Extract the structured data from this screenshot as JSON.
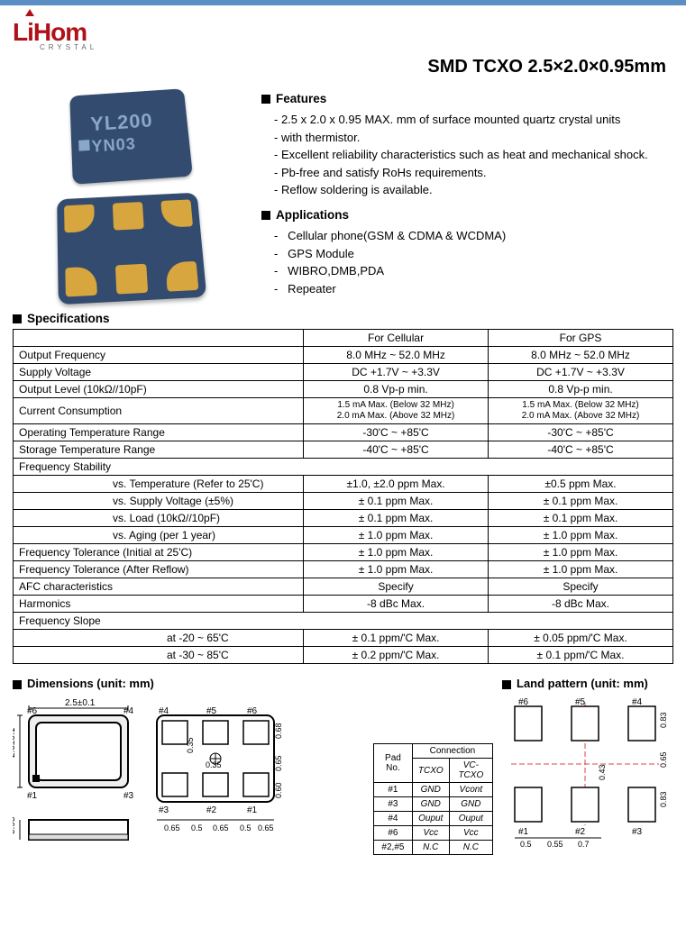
{
  "logo": {
    "text": "LiHom",
    "sub": "CRYSTAL"
  },
  "title": "SMD TCXO 2.5×2.0×0.95mm",
  "chip": {
    "line1": "YL200",
    "line2": "YN03"
  },
  "features": {
    "heading": "Features",
    "items": [
      "2.5 x 2.0 x 0.95 MAX. mm of surface mounted quartz crystal units",
      " with thermistor.",
      "Excellent reliability characteristics such as heat and mechanical shock.",
      "Pb-free and satisfy RoHs requirements.",
      "Reflow soldering is available."
    ]
  },
  "applications": {
    "heading": "Applications",
    "items": [
      " Cellular phone(GSM & CDMA & WCDMA)",
      " GPS Module",
      " WIBRO,DMB,PDA",
      " Repeater"
    ]
  },
  "specHeading": "Specifications",
  "specCols": {
    "c1": "For Cellular",
    "c2": "For GPS"
  },
  "rows": [
    {
      "l": "Output Frequency",
      "a": "8.0 MHz ~ 52.0 MHz",
      "b": "8.0 MHz ~ 52.0 MHz"
    },
    {
      "l": "Supply Voltage",
      "a": "DC +1.7V ~ +3.3V",
      "b": "DC +1.7V ~ +3.3V"
    },
    {
      "l": "Output Level (10kΩ//10pF)",
      "a": "0.8 Vp-p min.",
      "b": "0.8 Vp-p min."
    },
    {
      "l": "Current Consumption",
      "a": "1.5 mA  Max. (Below 32 MHz)\n2.0 mA  Max. (Above 32 MHz)",
      "b": "1.5 mA  Max. (Below 32 MHz)\n2.0 mA  Max. (Above 32 MHz)",
      "small": true
    },
    {
      "l": "Operating Temperature Range",
      "a": "-30'C ~ +85'C",
      "b": "-30'C ~ +85'C"
    },
    {
      "l": "Storage Temperature Range",
      "a": "-40'C ~ +85'C",
      "b": "-40'C ~ +85'C"
    },
    {
      "l": "Frequency Stability",
      "a": "",
      "b": "",
      "span": true
    },
    {
      "l": "vs. Temperature (Refer to 25'C)",
      "a": "±1.0, ±2.0 ppm Max.",
      "b": "±0.5 ppm Max.",
      "indent": true
    },
    {
      "l": "vs. Supply Voltage (±5%)",
      "a": "± 0.1 ppm Max.",
      "b": "± 0.1 ppm Max.",
      "indent": true
    },
    {
      "l": "vs. Load (10kΩ//10pF)",
      "a": "± 0.1 ppm Max.",
      "b": "± 0.1 ppm Max.",
      "indent": true
    },
    {
      "l": "vs. Aging (per 1 year)",
      "a": "± 1.0 ppm Max.",
      "b": "± 1.0 ppm Max.",
      "indent": true
    },
    {
      "l": "Frequency Tolerance (Initial at 25'C)",
      "a": "± 1.0 ppm Max.",
      "b": "± 1.0 ppm Max."
    },
    {
      "l": "Frequency Tolerance (After Reflow)",
      "a": "± 1.0 ppm Max.",
      "b": "± 1.0 ppm Max."
    },
    {
      "l": "AFC characteristics",
      "a": "Specify",
      "b": "Specify"
    },
    {
      "l": "Harmonics",
      "a": "-8 dBc Max.",
      "b": "-8 dBc Max."
    },
    {
      "l": "Frequency Slope",
      "a": "",
      "b": "",
      "span": true
    },
    {
      "l": "at -20 ~ 65'C",
      "a": "± 0.1 ppm/'C Max.",
      "b": "± 0.05 ppm/'C Max.",
      "indent2": true
    },
    {
      "l": "at -30 ~ 85'C",
      "a": "± 0.2 ppm/'C Max.",
      "b": "± 0.1 ppm/'C Max.",
      "indent2": true
    }
  ],
  "dimHeading": "Dimensions (unit: mm)",
  "landHeading": "Land pattern (unit: mm)",
  "dimLabels": {
    "w": "2.5±0.1",
    "h": "2.0±0.1",
    "t": "0.95",
    "p1": "#1",
    "p2": "#2",
    "p3": "#3",
    "p4": "#4",
    "p5": "#5",
    "p6": "#6",
    "d035": "0.35",
    "d065": "0.65",
    "d05": "0.5",
    "d068": "0.68",
    "d060": "0.60"
  },
  "conn": {
    "title": "Connection",
    "h0": "Pad No.",
    "h1": "TCXO",
    "h2": "VC-TCXO",
    "rows": [
      [
        "#1",
        "GND",
        "Vcont"
      ],
      [
        "#3",
        "GND",
        "GND"
      ],
      [
        "#4",
        "Ouput",
        "Ouput"
      ],
      [
        "#6",
        "Vcc",
        "Vcc"
      ],
      [
        "#2,#5",
        "N.C",
        "N.C"
      ]
    ]
  },
  "land": {
    "d083": "0.83",
    "d065": "0.65",
    "d043": "0.43",
    "d05": "0.5",
    "d055": "0.55",
    "d07": "0.7"
  }
}
